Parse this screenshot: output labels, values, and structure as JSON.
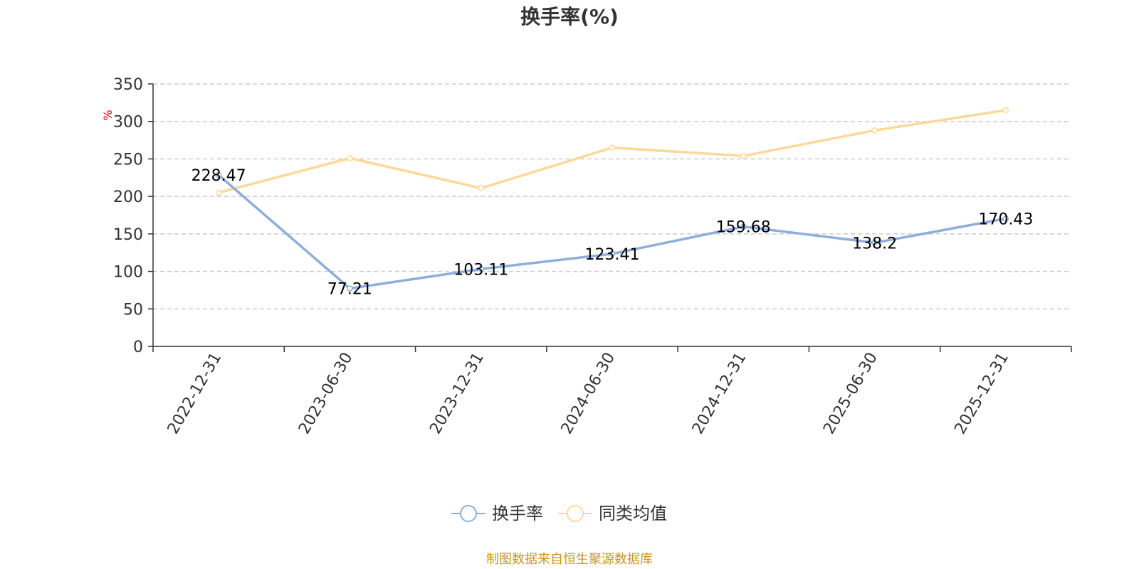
{
  "chart_data": {
    "type": "line",
    "title": "换手率(%)",
    "ylabel": "%",
    "ylim": [
      0,
      350
    ],
    "yticks": [
      0,
      50,
      100,
      150,
      200,
      250,
      300,
      350
    ],
    "grid": true,
    "legend_position": "bottom-center",
    "categories": [
      "2022-12-31",
      "2023-06-30",
      "2023-12-31",
      "2024-06-30",
      "2024-12-31",
      "2025-06-30",
      "2025-12-31"
    ],
    "series": [
      {
        "name": "换手率",
        "color": "#8eaedb",
        "values": [
          228.47,
          77.21,
          103.11,
          123.41,
          159.68,
          138.2,
          170.43
        ],
        "labels": [
          "228.47",
          "77.21",
          "103.11",
          "123.41",
          "159.68",
          "138.2",
          "170.43"
        ]
      },
      {
        "name": "同类均值",
        "color": "#fbd99a",
        "values": [
          205,
          251,
          211,
          265,
          254,
          288,
          315
        ]
      }
    ]
  },
  "source_text": "制图数据来自恒生聚源数据库"
}
